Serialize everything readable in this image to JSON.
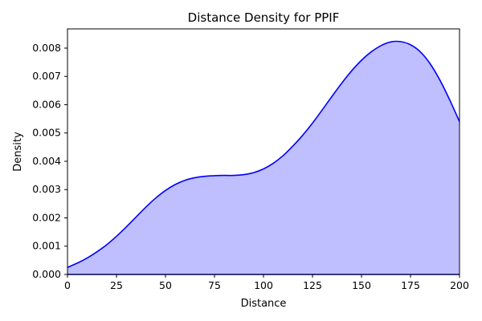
{
  "chart_data": {
    "type": "area",
    "title": "Distance Density for PPIF",
    "xlabel": "Distance",
    "ylabel": "Density",
    "xlim": [
      0,
      200
    ],
    "ylim": [
      0,
      0.00868
    ],
    "x_ticks": [
      "0",
      "25",
      "50",
      "75",
      "100",
      "125",
      "150",
      "175",
      "200"
    ],
    "y_ticks": [
      "0.000",
      "0.001",
      "0.002",
      "0.003",
      "0.004",
      "0.005",
      "0.006",
      "0.007",
      "0.008"
    ],
    "grid": false,
    "colors": {
      "line": "#0000ff",
      "fill": "#bfbfff",
      "axes": "#000000"
    },
    "series": [
      {
        "x": [
          0,
          5,
          10,
          15,
          20,
          25,
          30,
          35,
          40,
          45,
          50,
          55,
          60,
          65,
          70,
          75,
          80,
          85,
          90,
          95,
          100,
          105,
          110,
          115,
          120,
          125,
          130,
          135,
          140,
          145,
          150,
          155,
          160,
          165,
          170,
          175,
          180,
          185,
          190,
          195,
          200
        ],
        "y": [
          0.00025,
          0.0004,
          0.00058,
          0.0008,
          0.00105,
          0.00135,
          0.00168,
          0.00203,
          0.00238,
          0.0027,
          0.00297,
          0.00318,
          0.00333,
          0.00342,
          0.00347,
          0.00349,
          0.0035,
          0.0035,
          0.00353,
          0.0036,
          0.00373,
          0.00393,
          0.0042,
          0.00454,
          0.00492,
          0.00535,
          0.00582,
          0.0063,
          0.00677,
          0.0072,
          0.00757,
          0.00787,
          0.00809,
          0.00822,
          0.00823,
          0.00812,
          0.00787,
          0.00745,
          0.00687,
          0.00617,
          0.0054
        ]
      }
    ]
  }
}
